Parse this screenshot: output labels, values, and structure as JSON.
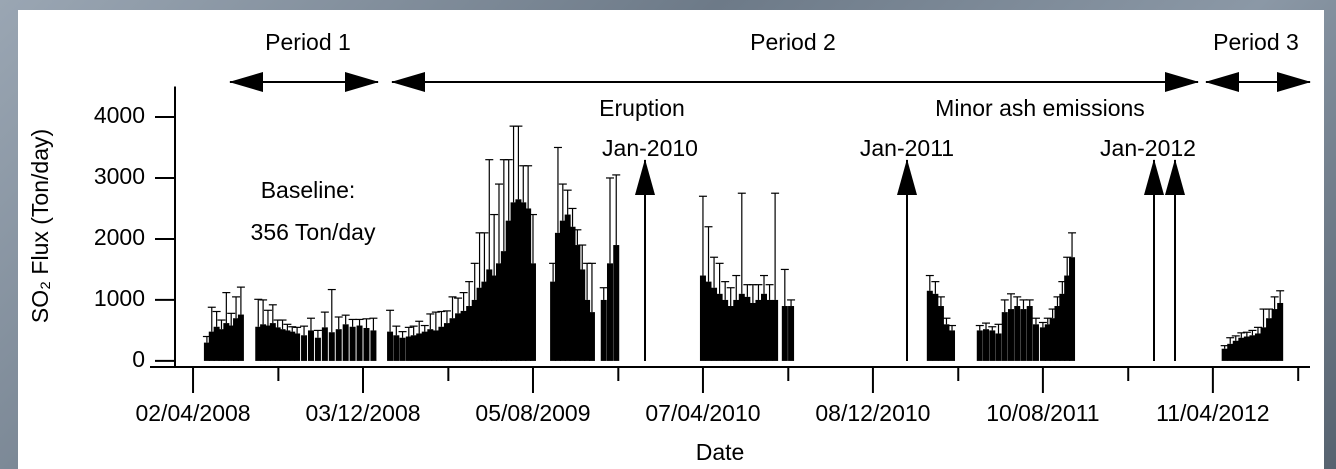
{
  "chart_data": {
    "type": "bar",
    "x_label": "Date",
    "y_label": "SO₂ Flux (Ton/day)",
    "color": "#000000",
    "xlim": [
      "2008-03-07",
      "2012-08-29"
    ],
    "xticks": [
      {
        "value": "2008-04-02",
        "label": "02/04/2008"
      },
      {
        "value": "2008-12-03",
        "label": "03/12/2008"
      },
      {
        "value": "2009-08-05",
        "label": "05/08/2009"
      },
      {
        "value": "2010-04-07",
        "label": "07/04/2010"
      },
      {
        "value": "2010-12-08",
        "label": "08/12/2010"
      },
      {
        "value": "2011-08-10",
        "label": "10/08/2011"
      },
      {
        "value": "2012-04-11",
        "label": "11/04/2012"
      }
    ],
    "xminorticks": [
      "2008-08-03",
      "2009-04-05",
      "2009-12-06",
      "2010-08-08",
      "2011-04-10",
      "2011-12-11",
      "2012-08-12"
    ],
    "ylim": [
      -100,
      4500
    ],
    "yticks": [
      0,
      1000,
      2000,
      3000,
      4000
    ],
    "annotations": [
      "Period 1",
      "Period 2",
      "Period 3",
      "Eruption",
      "Jan-2010",
      "Jan-2011",
      "Minor ash emissions",
      "Jan-2012",
      "Baseline:",
      "356 Ton/day"
    ],
    "x": [
      "2008-04-22",
      "2008-04-29",
      "2008-05-06",
      "2008-05-13",
      "2008-05-20",
      "2008-05-27",
      "2008-06-03",
      "2008-06-10",
      "2008-07-05",
      "2008-07-12",
      "2008-07-19",
      "2008-07-26",
      "2008-08-02",
      "2008-08-09",
      "2008-08-16",
      "2008-08-23",
      "2008-08-30",
      "2008-09-09",
      "2008-09-19",
      "2008-09-29",
      "2008-10-09",
      "2008-10-19",
      "2008-10-29",
      "2008-11-08",
      "2008-11-18",
      "2008-11-28",
      "2008-12-08",
      "2008-12-18",
      "2009-01-11",
      "2009-01-20",
      "2009-01-29",
      "2009-02-07",
      "2009-02-14",
      "2009-02-22",
      "2009-03-02",
      "2009-03-10",
      "2009-03-18",
      "2009-03-26",
      "2009-04-03",
      "2009-04-11",
      "2009-04-19",
      "2009-04-27",
      "2009-05-05",
      "2009-05-13",
      "2009-05-20",
      "2009-05-27",
      "2009-06-03",
      "2009-06-10",
      "2009-06-17",
      "2009-06-24",
      "2009-07-01",
      "2009-07-08",
      "2009-07-15",
      "2009-07-22",
      "2009-07-29",
      "2009-08-05",
      "2009-09-03",
      "2009-09-10",
      "2009-09-17",
      "2009-09-24",
      "2009-10-01",
      "2009-10-08",
      "2009-10-15",
      "2009-10-22",
      "2009-10-29",
      "2009-11-15",
      "2009-11-24",
      "2009-12-03",
      "2010-04-07",
      "2010-04-15",
      "2010-04-23",
      "2010-05-01",
      "2010-05-09",
      "2010-05-17",
      "2010-05-25",
      "2010-06-02",
      "2010-06-10",
      "2010-06-18",
      "2010-06-26",
      "2010-07-04",
      "2010-07-12",
      "2010-07-20",
      "2010-08-03",
      "2010-08-12",
      "2011-02-28",
      "2011-03-08",
      "2011-03-16",
      "2011-03-24",
      "2011-04-01",
      "2011-05-11",
      "2011-05-20",
      "2011-05-29",
      "2011-06-07",
      "2011-06-16",
      "2011-06-25",
      "2011-07-04",
      "2011-07-13",
      "2011-07-22",
      "2011-07-31",
      "2011-08-10",
      "2011-08-17",
      "2011-08-24",
      "2011-08-31",
      "2011-09-07",
      "2011-09-14",
      "2011-09-21",
      "2012-04-28",
      "2012-05-06",
      "2012-05-14",
      "2012-05-22",
      "2012-05-30",
      "2012-06-07",
      "2012-06-15",
      "2012-06-23",
      "2012-07-01",
      "2012-07-09",
      "2012-07-17"
    ],
    "values": [
      300,
      480,
      560,
      520,
      620,
      580,
      700,
      760,
      560,
      600,
      580,
      620,
      550,
      520,
      500,
      480,
      450,
      420,
      500,
      380,
      550,
      470,
      520,
      600,
      560,
      580,
      540,
      500,
      480,
      420,
      380,
      400,
      420,
      450,
      480,
      520,
      500,
      560,
      620,
      700,
      780,
      820,
      900,
      1000,
      1200,
      1300,
      1500,
      1400,
      1600,
      1800,
      2300,
      2600,
      2650,
      2600,
      2500,
      1600,
      1300,
      2100,
      2300,
      2400,
      2200,
      1900,
      1500,
      1000,
      800,
      1000,
      1600,
      1900,
      1400,
      1300,
      1200,
      1100,
      1000,
      900,
      1000,
      1100,
      1050,
      950,
      1000,
      1100,
      1000,
      1000,
      900,
      900,
      1150,
      1100,
      900,
      600,
      500,
      500,
      520,
      500,
      450,
      800,
      850,
      900,
      850,
      900,
      600,
      550,
      600,
      700,
      900,
      1100,
      1400,
      1700,
      200,
      280,
      330,
      380,
      400,
      420,
      450,
      550,
      700,
      850,
      950
    ],
    "errors": [
      100,
      400,
      250,
      150,
      500,
      200,
      350,
      450,
      450,
      400,
      250,
      300,
      120,
      150,
      100,
      80,
      100,
      150,
      200,
      120,
      250,
      700,
      200,
      150,
      120,
      100,
      150,
      200,
      350,
      150,
      100,
      150,
      150,
      200,
      100,
      250,
      300,
      250,
      200,
      350,
      250,
      300,
      400,
      600,
      900,
      800,
      1800,
      1000,
      1300,
      1500,
      1000,
      1250,
      1200,
      600,
      700,
      800,
      300,
      1400,
      600,
      400,
      300,
      250,
      400,
      600,
      800,
      200,
      1400,
      1150,
      1300,
      900,
      500,
      500,
      300,
      300,
      400,
      1650,
      200,
      300,
      250,
      300,
      250,
      1750,
      600,
      100,
      250,
      200,
      150,
      100,
      80,
      80,
      100,
      60,
      150,
      200,
      250,
      150,
      150,
      100,
      100,
      80,
      100,
      150,
      150,
      200,
      300,
      400,
      50,
      100,
      80,
      80,
      70,
      80,
      100,
      300,
      150,
      200,
      200
    ]
  }
}
